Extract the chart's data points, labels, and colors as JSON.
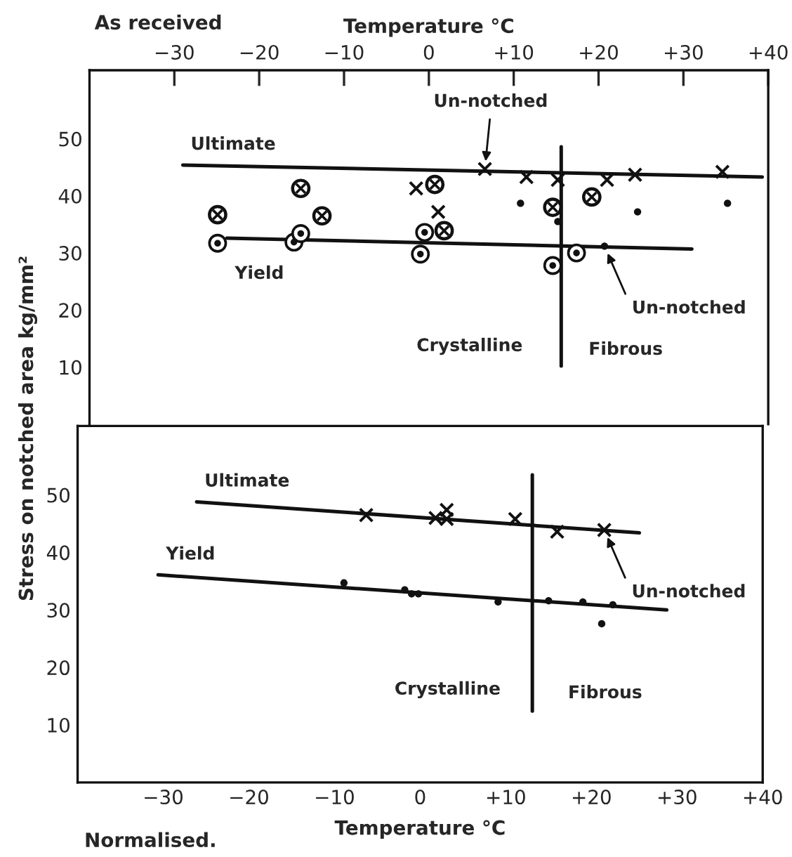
{
  "chart_data": [
    {
      "type": "scatter",
      "xlabel": "Temperature °C",
      "ylabel": "Stress on notched area kg/mm²",
      "xlim": [
        -40,
        40
      ],
      "ylim": [
        0,
        62
      ],
      "xticks": [
        {
          "value": -30,
          "label": "−30"
        },
        {
          "value": -20,
          "label": "−20"
        },
        {
          "value": -10,
          "label": "−10"
        },
        0,
        {
          "value": 10,
          "label": "+10"
        },
        {
          "value": 20,
          "label": "+20"
        },
        {
          "value": 30,
          "label": "+30"
        },
        {
          "value": 40,
          "label": "+40"
        }
      ],
      "yticks": [
        10,
        20,
        30,
        40,
        50
      ],
      "grid": false,
      "legend": false,
      "series": [
        {
          "type": "line",
          "name": "Ultimate",
          "color": "#111111",
          "marker": "none",
          "x": [
            -29,
            39.3
          ],
          "values": [
            45.4,
            43.3
          ]
        },
        {
          "type": "line",
          "name": "Yield",
          "color": "#111111",
          "marker": "none",
          "x": [
            -23.8,
            31
          ],
          "values": [
            32.6,
            30.7
          ]
        },
        {
          "type": "line",
          "color": "#111111",
          "marker": "none",
          "x": [
            15.6,
            15.6
          ],
          "values": [
            10.2,
            48.6
          ]
        },
        {
          "type": "scatter",
          "color": "#111111",
          "marker": "circle cross",
          "x": [
            -24.9,
            -15.1,
            -12.6,
            0.7,
            1.8,
            14.6,
            19.2
          ],
          "values": [
            36.7,
            41.3,
            36.5,
            42.0,
            33.9,
            38.0,
            39.8
          ]
        },
        {
          "type": "scatter",
          "color": "#111111",
          "marker": "circle dot",
          "x": [
            -24.9,
            -15.9,
            -15.1,
            -0.5,
            -1.0,
            14.6,
            17.4
          ],
          "values": [
            31.7,
            31.9,
            33.4,
            33.6,
            29.8,
            27.8,
            30.0
          ]
        },
        {
          "type": "scatter",
          "color": "#111111",
          "marker": "cross",
          "x": [
            -1.5,
            1.1,
            6.6,
            11.5,
            15.2,
            21.0,
            24.3,
            34.6
          ],
          "values": [
            41.3,
            37.2,
            44.7,
            43.3,
            42.8,
            42.8,
            43.7,
            44.2
          ]
        },
        {
          "type": "scatter",
          "color": "#111111",
          "marker": "circle",
          "x": [
            10.8,
            15.2,
            24.6,
            35.2,
            20.7
          ],
          "values": [
            38.7,
            35.5,
            37.2,
            38.7,
            31.2
          ]
        }
      ],
      "annotations": [
        "As received",
        {
          "text": "Un-notched",
          "x": 6.6,
          "y": 44.7
        },
        {
          "text": "Un-notched",
          "x": 20.7,
          "y": 31.2
        },
        "Crystalline",
        "Fibrous"
      ]
    },
    {
      "type": "scatter",
      "xlabel": "Temperature °C",
      "xlim": [
        -40,
        40
      ],
      "ylim": [
        0,
        62
      ],
      "xticks": [
        {
          "value": -30,
          "label": "−30"
        },
        {
          "value": -20,
          "label": "−20"
        },
        {
          "value": -10,
          "label": "−10"
        },
        0,
        {
          "value": 10,
          "label": "+10"
        },
        {
          "value": 20,
          "label": "+20"
        },
        {
          "value": 30,
          "label": "+30"
        },
        {
          "value": 40,
          "label": "+40"
        }
      ],
      "yticks": [
        10,
        20,
        30,
        40,
        50
      ],
      "grid": false,
      "legend": false,
      "series": [
        {
          "type": "line",
          "name": "Ultimate",
          "color": "#111111",
          "marker": "none",
          "x": [
            -26.1,
            25.6
          ],
          "values": [
            48.8,
            43.4
          ]
        },
        {
          "type": "line",
          "name": "Yield",
          "color": "#111111",
          "marker": "none",
          "x": [
            -30.6,
            28.8
          ],
          "values": [
            36.1,
            30.0
          ]
        },
        {
          "type": "line",
          "color": "#111111",
          "marker": "none",
          "x": [
            13.1,
            13.1
          ],
          "values": [
            12.4,
            53.5
          ]
        },
        {
          "type": "scatter",
          "color": "#111111",
          "marker": "cross",
          "x": [
            -6.3,
            1.8,
            3.1,
            3.1,
            11.1,
            16.0,
            21.5
          ],
          "values": [
            46.5,
            46.0,
            47.4,
            45.8,
            45.8,
            43.6,
            43.9
          ]
        },
        {
          "type": "scatter",
          "color": "#111111",
          "marker": "circle",
          "x": [
            -8.9,
            -1.8,
            -1.0,
            -0.2,
            9.1,
            15.0,
            19.0,
            22.5,
            21.2
          ],
          "values": [
            34.7,
            33.5,
            32.8,
            32.8,
            31.4,
            31.6,
            31.4,
            30.9,
            27.6
          ]
        }
      ],
      "annotations": [
        "Normalised.",
        {
          "text": "Un-notched",
          "x": 21.5,
          "y": 43.9
        },
        "Crystalline",
        "Fibrous"
      ]
    }
  ]
}
